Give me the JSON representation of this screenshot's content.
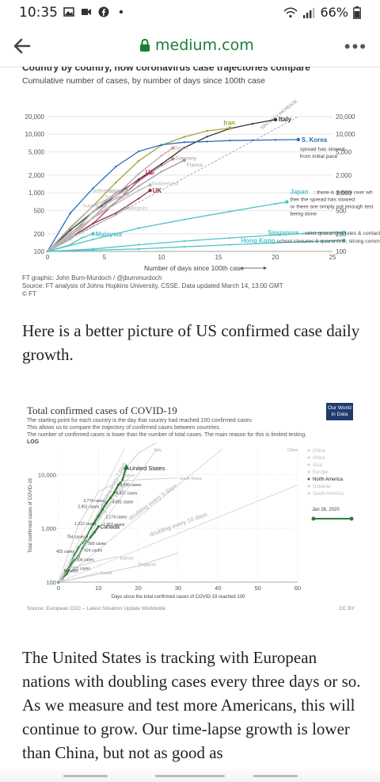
{
  "status_bar": {
    "time": "10:35",
    "battery": "66%"
  },
  "browser": {
    "domain": "medium.com",
    "more_label": "•••"
  },
  "figure1": {
    "title": "Country by country, how coronavirus case trajectories compare",
    "subtitle": "Cumulative number of cases, by number of days since 100th case",
    "credit_line1": "FT graphic: John Burn-Murdoch / @jburnmurdoch",
    "credit_line2": "Source: FT analysis of Johns Hopkins University, CSSE. Data updated March 14, 13:00 GMT",
    "credit_line3": "© FT",
    "chart_data": {
      "type": "line",
      "title": "Country by country, how coronavirus case trajectories compare",
      "subtitle": "Cumulative number of cases, by number of days since 100th case",
      "xlabel": "Number of days since 100th case",
      "ylabel": "",
      "y_scale": "log",
      "xlim": [
        0,
        25
      ],
      "ylim": [
        100,
        20000
      ],
      "x_ticks": [
        "0",
        "5",
        "10",
        "15",
        "20",
        "25"
      ],
      "y_ticks": [
        "100",
        "200",
        "500",
        "1,000",
        "2,000",
        "5,000",
        "10,000",
        "20,000"
      ],
      "reference_label": "33% DAILY INCREASE",
      "series": [
        {
          "name": "Italy",
          "color": "#333333",
          "x": [
            0,
            2,
            4,
            6,
            8,
            10,
            12,
            14,
            16,
            18,
            20
          ],
          "y": [
            100,
            230,
            470,
            900,
            1700,
            3100,
            5900,
            9100,
            12500,
            15100,
            17700
          ]
        },
        {
          "name": "Iran",
          "color": "#9aa63a",
          "x": [
            0,
            2,
            4,
            6,
            8,
            10,
            12,
            14,
            16
          ],
          "y": [
            100,
            250,
            600,
            1500,
            3500,
            6500,
            9000,
            11400,
            12700
          ]
        },
        {
          "name": "S. Korea",
          "color": "#2a6ebb",
          "x": [
            0,
            2,
            4,
            6,
            8,
            10,
            12,
            14,
            16,
            18,
            20,
            22
          ],
          "y": [
            100,
            450,
            1200,
            2800,
            5100,
            6600,
            7300,
            7500,
            7800,
            7900,
            8000,
            8100
          ]
        },
        {
          "name": "Spain",
          "color": "#c8a2a2",
          "x": [
            0,
            2,
            4,
            6,
            8,
            10,
            11
          ],
          "y": [
            100,
            160,
            380,
            900,
            2100,
            4300,
            5800
          ]
        },
        {
          "name": "Germany",
          "color": "#b58c8c",
          "x": [
            0,
            2,
            4,
            6,
            8,
            10,
            11
          ],
          "y": [
            100,
            180,
            480,
            1000,
            1600,
            2900,
            3800
          ]
        },
        {
          "name": "France",
          "color": "#9e9e9e",
          "x": [
            0,
            2,
            4,
            6,
            8,
            10,
            12
          ],
          "y": [
            100,
            190,
            380,
            700,
            1300,
            2300,
            3600
          ]
        },
        {
          "name": "US",
          "color": "#c2386a",
          "x": [
            0,
            2,
            4,
            6,
            8,
            9
          ],
          "y": [
            100,
            170,
            300,
            700,
            1600,
            2200
          ]
        },
        {
          "name": "Switzerland",
          "color": "#b8b8b8",
          "x": [
            0,
            2,
            4,
            6,
            8,
            9
          ],
          "y": [
            100,
            210,
            370,
            650,
            1100,
            1360
          ]
        },
        {
          "name": "Norway",
          "color": "#b8b8b8",
          "x": [
            0,
            2,
            4,
            6,
            7
          ],
          "y": [
            100,
            260,
            600,
            900,
            1100
          ]
        },
        {
          "name": "Netherlands",
          "color": "#b8b8b8",
          "x": [
            0,
            2,
            4,
            6,
            7
          ],
          "y": [
            100,
            180,
            380,
            700,
            960
          ]
        },
        {
          "name": "Sweden",
          "color": "#b8b8b8",
          "x": [
            0,
            2,
            4,
            6,
            7
          ],
          "y": [
            100,
            200,
            470,
            800,
            960
          ]
        },
        {
          "name": "UK",
          "color": "#8c2f39",
          "x": [
            0,
            2,
            4,
            6,
            8,
            9
          ],
          "y": [
            100,
            170,
            300,
            450,
            800,
            1100
          ]
        },
        {
          "name": "Austria",
          "color": "#b8b8b8",
          "x": [
            0,
            2,
            4,
            5
          ],
          "y": [
            100,
            190,
            380,
            600
          ]
        },
        {
          "name": "Belgium",
          "color": "#b8b8b8",
          "x": [
            0,
            2,
            4,
            6,
            7
          ],
          "y": [
            100,
            170,
            270,
            420,
            560
          ]
        },
        {
          "name": "Japan",
          "color": "#4fc3c8",
          "x": [
            0,
            4,
            8,
            12,
            16,
            20,
            21
          ],
          "y": [
            100,
            160,
            250,
            350,
            480,
            650,
            700
          ]
        },
        {
          "name": "Malaysia",
          "color": "#4fc3c8",
          "x": [
            0,
            2,
            3,
            4
          ],
          "y": [
            100,
            130,
            170,
            200
          ]
        },
        {
          "name": "Singapore",
          "color": "#4fc3c8",
          "x": [
            0,
            4,
            8,
            12,
            16,
            20,
            24,
            26
          ],
          "y": [
            100,
            110,
            130,
            150,
            170,
            190,
            210,
            212
          ]
        },
        {
          "name": "Hong Kong",
          "color": "#4fc3c8",
          "x": [
            0,
            4,
            8,
            12,
            16,
            20,
            24,
            26
          ],
          "y": [
            100,
            105,
            110,
            120,
            130,
            140,
            150,
            155
          ]
        }
      ],
      "annotations": {
        "s_korea": "spread has slowed from initial pace",
        "japan": "there is debate over whether the spread has slowed or there are simply not enough tests being done",
        "singapore": "strict quarantine rules & contact tracing",
        "hong_kong": "school closures & quarantine, strong community response"
      }
    }
  },
  "paragraph1": "Here is a better picture of US confirmed case daily growth.",
  "figure2": {
    "title": "Total confirmed cases of COVID-19",
    "subtitle_line1": "The starting point for each country is the day that country had reached 100 confirmed cases",
    "subtitle_line2": "This allows us to compare the trajectory of confirmed cases between countries.",
    "subtitle_line3": "The number of confirmed cases is lower than the number of total cases. The main reason for this is limited testing.",
    "log_label": "LOG",
    "logo": "Our World in Data",
    "source": "Source: European CDC – Latest Situation Update Worldwide",
    "license": "CC BY",
    "chart_data": {
      "type": "line",
      "title": "Total confirmed cases of COVID-19",
      "xlabel": "Days since the total confirmed cases of COVID-19 reached 100",
      "ylabel": "Total confirmed cases of COVID-19",
      "y_scale": "log",
      "xlim": [
        0,
        60
      ],
      "ylim": [
        100,
        30000
      ],
      "x_ticks": [
        "0",
        "10",
        "20",
        "30",
        "40",
        "50",
        "60"
      ],
      "y_ticks": [
        "100",
        "1,000",
        "10,000"
      ],
      "legend": [
        "China",
        "Africa",
        "Asia",
        "Europe",
        "North America",
        "Oceania",
        "South America"
      ],
      "legend_position": "right",
      "highlight_series": "North America",
      "date_slider": {
        "start": "Jan 26, 2020",
        "end": "Mar 20, 2020"
      },
      "reference_lines": [
        "doubling every 2 days",
        "doubling every 3 days",
        "doubling every 5 days",
        "doubling every 10 days"
      ],
      "series": [
        {
          "name": "United States",
          "x": [
            0,
            1,
            2,
            3,
            4,
            5,
            6,
            7,
            8,
            9,
            10,
            11,
            12,
            13,
            14,
            15,
            16,
            17
          ],
          "y": [
            100,
            124,
            158,
            221,
            319,
            435,
            541,
            704,
            994,
            1301,
            1697,
            2247,
            2943,
            3680,
            4663,
            6421,
            7786,
            13680
          ]
        },
        {
          "name": "Canada",
          "x": [
            0,
            1,
            2,
            3,
            4,
            5,
            6,
            7,
            8,
            9,
            10
          ],
          "y": [
            100,
            117,
            142,
            198,
            252,
            304,
            424,
            569,
            690,
            846,
            1087
          ]
        },
        {
          "name": "Mexico",
          "x": [
            0,
            1,
            2
          ],
          "y": [
            100,
            118,
            164
          ]
        },
        {
          "name": "Italy",
          "x": [
            0,
            5,
            10,
            15,
            20,
            25
          ],
          "y": [
            100,
            400,
            2000,
            9000,
            25000,
            41000
          ]
        },
        {
          "name": "France",
          "x": [
            0,
            5,
            10,
            15,
            18
          ],
          "y": [
            100,
            300,
            1400,
            5400,
            9100
          ]
        },
        {
          "name": "South Korea",
          "x": [
            0,
            5,
            10,
            15,
            20,
            25,
            30
          ],
          "y": [
            100,
            1200,
            4800,
            7400,
            8000,
            8300,
            8600
          ]
        },
        {
          "name": "Singapore",
          "x": [
            0,
            10,
            20,
            30
          ],
          "y": [
            100,
            140,
            200,
            350
          ]
        },
        {
          "name": "Bahrain",
          "x": [
            0,
            5,
            10,
            15
          ],
          "y": [
            100,
            200,
            250,
            300
          ]
        },
        {
          "name": "Kuwait",
          "x": [
            0,
            5,
            10
          ],
          "y": [
            100,
            120,
            150
          ]
        }
      ],
      "data_labels": [
        "United States",
        "8,495 cases",
        "6,437 cases",
        "4,681 cases",
        "3,774 cases",
        "2,951 cases",
        "2,174 cases",
        "1,663 cases",
        "1,312 cases",
        "754 cases",
        "Canada",
        "433 cases",
        "569 cases",
        "424 cases",
        "304 cases",
        "Mexico",
        "221 cases",
        "Kuwait",
        "Bahrain",
        "Singapore",
        "South Korea",
        "France",
        "Italy",
        "China"
      ]
    }
  },
  "paragraph2": "The United States is tracking with European nations with doubling cases every three days or so. As we measure and test more Americans, this will continue to grow. Our time-lapse growth is lower than China, but not as good as"
}
